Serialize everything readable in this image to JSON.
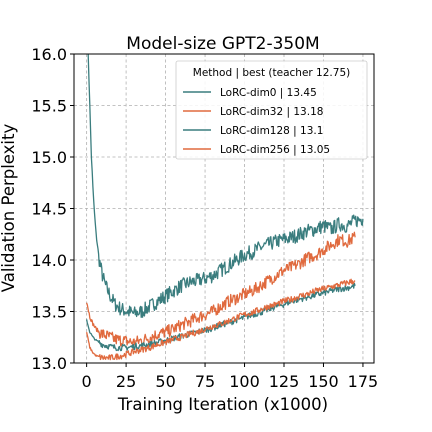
{
  "chart_data": {
    "type": "line",
    "title": "Model-size GPT2-350M",
    "xlabel": "Training Iteration (x1000)",
    "ylabel": "Validation Perplexity",
    "xlim": [
      -8,
      182
    ],
    "ylim": [
      13.0,
      16.0
    ],
    "xticks": [
      0,
      25,
      50,
      75,
      100,
      125,
      150,
      175
    ],
    "yticks": [
      13.0,
      13.5,
      14.0,
      14.5,
      15.0,
      15.5,
      16.0
    ],
    "xtick_labels": [
      "0",
      "25",
      "50",
      "75",
      "100",
      "125",
      "150",
      "175"
    ],
    "ytick_labels": [
      "13.0",
      "13.5",
      "14.0",
      "14.5",
      "15.0",
      "15.5",
      "16.0"
    ],
    "grid": true,
    "legend_position": "top-right",
    "legend_title": "Method | best (teacher 12.75)",
    "series": [
      {
        "name": "LoRC-dim0 | 13.45",
        "color": "#3a7d7e",
        "x": [
          0,
          1,
          2,
          3,
          4,
          5,
          6,
          8,
          10,
          12,
          15,
          18,
          22,
          26,
          30,
          35,
          40,
          45,
          50,
          55,
          60,
          65,
          70,
          75,
          80,
          85,
          90,
          95,
          100,
          105,
          110,
          115,
          120,
          125,
          130,
          135,
          140,
          145,
          150,
          155,
          160,
          165,
          170,
          175
        ],
        "y": [
          16.4,
          16.0,
          15.5,
          15.0,
          14.7,
          14.45,
          14.25,
          14.0,
          13.85,
          13.75,
          13.65,
          13.57,
          13.52,
          13.5,
          13.48,
          13.5,
          13.55,
          13.6,
          13.65,
          13.7,
          13.75,
          13.78,
          13.8,
          13.82,
          13.85,
          13.9,
          13.95,
          14.0,
          14.05,
          14.08,
          14.12,
          14.15,
          14.18,
          14.2,
          14.22,
          14.25,
          14.28,
          14.3,
          14.33,
          14.3,
          14.35,
          14.33,
          14.38,
          14.4
        ],
        "noise": 0.07
      },
      {
        "name": "LoRC-dim32 | 13.18",
        "color": "#e06a3e",
        "x": [
          0,
          2,
          4,
          6,
          8,
          10,
          12,
          15,
          18,
          22,
          26,
          30,
          35,
          40,
          45,
          50,
          55,
          60,
          65,
          70,
          75,
          80,
          85,
          90,
          95,
          100,
          105,
          110,
          115,
          120,
          125,
          130,
          135,
          140,
          145,
          150,
          155,
          160,
          165,
          170
        ],
        "y": [
          13.6,
          13.45,
          13.38,
          13.33,
          13.3,
          13.28,
          13.27,
          13.25,
          13.23,
          13.22,
          13.21,
          13.2,
          13.22,
          13.25,
          13.28,
          13.3,
          13.33,
          13.37,
          13.4,
          13.44,
          13.47,
          13.5,
          13.55,
          13.6,
          13.63,
          13.67,
          13.7,
          13.75,
          13.8,
          13.85,
          13.9,
          13.93,
          13.97,
          14.02,
          14.05,
          14.1,
          14.15,
          14.2,
          14.18,
          14.22
        ],
        "noise": 0.06
      },
      {
        "name": "LoRC-dim128 | 13.1",
        "color": "#3a7d7e",
        "x": [
          0,
          2,
          4,
          6,
          8,
          10,
          12,
          15,
          18,
          22,
          26,
          30,
          35,
          40,
          45,
          50,
          55,
          60,
          65,
          70,
          75,
          80,
          85,
          90,
          95,
          100,
          105,
          110,
          115,
          120,
          125,
          130,
          135,
          140,
          145,
          150,
          155,
          160,
          165,
          170
        ],
        "y": [
          13.42,
          13.3,
          13.25,
          13.22,
          13.2,
          13.18,
          13.17,
          13.16,
          13.15,
          13.15,
          13.15,
          13.16,
          13.17,
          13.18,
          13.2,
          13.22,
          13.24,
          13.26,
          13.28,
          13.3,
          13.32,
          13.34,
          13.37,
          13.39,
          13.42,
          13.44,
          13.47,
          13.49,
          13.52,
          13.55,
          13.57,
          13.6,
          13.62,
          13.64,
          13.66,
          13.68,
          13.7,
          13.72,
          13.73,
          13.75
        ],
        "noise": 0.03
      },
      {
        "name": "LoRC-dim256 | 13.05",
        "color": "#e06a3e",
        "x": [
          0,
          2,
          4,
          6,
          8,
          10,
          12,
          15,
          18,
          22,
          26,
          30,
          35,
          40,
          45,
          50,
          55,
          60,
          65,
          70,
          75,
          80,
          85,
          90,
          95,
          100,
          105,
          110,
          115,
          120,
          125,
          130,
          135,
          140,
          145,
          150,
          155,
          160,
          165,
          170
        ],
        "y": [
          13.3,
          13.15,
          13.1,
          13.07,
          13.06,
          13.05,
          13.05,
          13.05,
          13.06,
          13.07,
          13.09,
          13.11,
          13.13,
          13.15,
          13.18,
          13.2,
          13.23,
          13.25,
          13.28,
          13.3,
          13.33,
          13.36,
          13.38,
          13.41,
          13.44,
          13.47,
          13.49,
          13.52,
          13.55,
          13.57,
          13.6,
          13.62,
          13.65,
          13.67,
          13.7,
          13.72,
          13.74,
          13.76,
          13.78,
          13.8
        ],
        "noise": 0.03
      }
    ]
  }
}
